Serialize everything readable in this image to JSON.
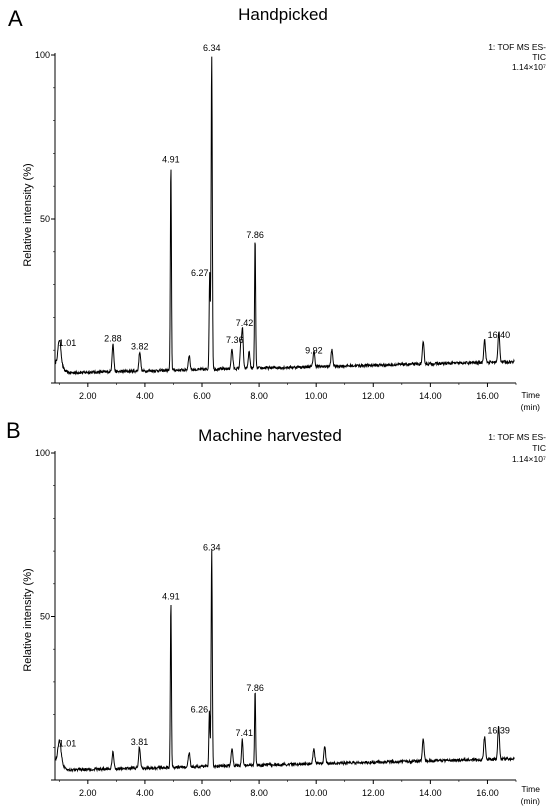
{
  "chart_data": [
    {
      "type": "line",
      "panel_label": "A",
      "title": "Handpicked",
      "instrument": "1: TOF MS ES-",
      "instrument2": "TIC",
      "intensity": "1.14×10⁷",
      "ylabel": "Relative intensity (%)",
      "xlabel": "Time",
      "xlabel_unit": "(min)",
      "xlim": [
        0.85,
        17.0
      ],
      "ylim": [
        0,
        100
      ],
      "x_ticks": [
        2,
        4,
        6,
        8,
        10,
        12,
        14,
        16
      ],
      "x_tick_labels": [
        "2.00",
        "4.00",
        "6.00",
        "8.00",
        "10.00",
        "12.00",
        "14.00",
        "16.00"
      ],
      "y_ticks": [
        0,
        50,
        100
      ],
      "y_tick_labels": [
        "",
        "50",
        "100"
      ],
      "baseline_start": 3,
      "baseline_end": 6.5,
      "peaks": [
        {
          "x": 1.01,
          "y": 7,
          "w": 0.05,
          "label": "1.01"
        },
        {
          "x": 2.88,
          "y": 8.5,
          "w": 0.03,
          "label": "2.88"
        },
        {
          "x": 3.82,
          "y": 6.0,
          "w": 0.03,
          "label": "3.82"
        },
        {
          "x": 4.91,
          "y": 63,
          "w": 0.018,
          "label": "4.91"
        },
        {
          "x": 6.27,
          "y": 29,
          "w": 0.02,
          "label": "6.27"
        },
        {
          "x": 6.34,
          "y": 97,
          "w": 0.02,
          "label": "6.34"
        },
        {
          "x": 7.36,
          "y": 8,
          "w": 0.025,
          "label": "7.36"
        },
        {
          "x": 7.42,
          "y": 12,
          "w": 0.025,
          "label": "7.42"
        },
        {
          "x": 7.86,
          "y": 40,
          "w": 0.018,
          "label": "7.86"
        },
        {
          "x": 9.92,
          "y": 4.8,
          "w": 0.03,
          "label": "9.92"
        },
        {
          "x": 16.4,
          "y": 9.5,
          "w": 0.03,
          "label": "16.40"
        },
        {
          "x": 5.55,
          "y": 4.5,
          "w": 0.03,
          "label": ""
        },
        {
          "x": 7.05,
          "y": 6,
          "w": 0.03,
          "label": ""
        },
        {
          "x": 7.65,
          "y": 5,
          "w": 0.03,
          "label": ""
        },
        {
          "x": 10.55,
          "y": 5,
          "w": 0.03,
          "label": ""
        },
        {
          "x": 13.75,
          "y": 6.5,
          "w": 0.03,
          "label": ""
        },
        {
          "x": 15.9,
          "y": 7,
          "w": 0.03,
          "label": ""
        }
      ]
    },
    {
      "type": "line",
      "panel_label": "B",
      "title": "Machine harvested",
      "instrument": "1: TOF MS ES-",
      "instrument2": "TIC",
      "intensity": "1.14×10⁷",
      "ylabel": "Relative intensity (%)",
      "xlabel": "Time",
      "xlabel_unit": "(min)",
      "xlim": [
        0.85,
        17.0
      ],
      "ylim": [
        0,
        100
      ],
      "x_ticks": [
        2,
        4,
        6,
        8,
        10,
        12,
        14,
        16
      ],
      "x_tick_labels": [
        "2.00",
        "4.00",
        "6.00",
        "8.00",
        "10.00",
        "12.00",
        "14.00",
        "16.00"
      ],
      "y_ticks": [
        0,
        50,
        100
      ],
      "y_tick_labels": [
        "",
        "50",
        "100"
      ],
      "baseline_start": 3,
      "baseline_end": 6.5,
      "peaks": [
        {
          "x": 1.01,
          "y": 6,
          "w": 0.05,
          "label": "1.01"
        },
        {
          "x": 2.88,
          "y": 5,
          "w": 0.03,
          "label": ""
        },
        {
          "x": 3.81,
          "y": 6.5,
          "w": 0.03,
          "label": "3.81"
        },
        {
          "x": 4.91,
          "y": 51,
          "w": 0.018,
          "label": "4.91"
        },
        {
          "x": 6.26,
          "y": 17,
          "w": 0.02,
          "label": "6.26"
        },
        {
          "x": 6.34,
          "y": 66,
          "w": 0.02,
          "label": "6.34"
        },
        {
          "x": 7.41,
          "y": 8,
          "w": 0.025,
          "label": "7.41"
        },
        {
          "x": 7.86,
          "y": 23,
          "w": 0.018,
          "label": "7.86"
        },
        {
          "x": 9.92,
          "y": 4.5,
          "w": 0.03,
          "label": ""
        },
        {
          "x": 16.39,
          "y": 10,
          "w": 0.03,
          "label": "16.39"
        },
        {
          "x": 5.55,
          "y": 4.5,
          "w": 0.03,
          "label": ""
        },
        {
          "x": 7.05,
          "y": 5.5,
          "w": 0.03,
          "label": ""
        },
        {
          "x": 10.3,
          "y": 5,
          "w": 0.03,
          "label": ""
        },
        {
          "x": 13.75,
          "y": 6.5,
          "w": 0.03,
          "label": ""
        },
        {
          "x": 15.9,
          "y": 7,
          "w": 0.03,
          "label": ""
        }
      ]
    }
  ]
}
